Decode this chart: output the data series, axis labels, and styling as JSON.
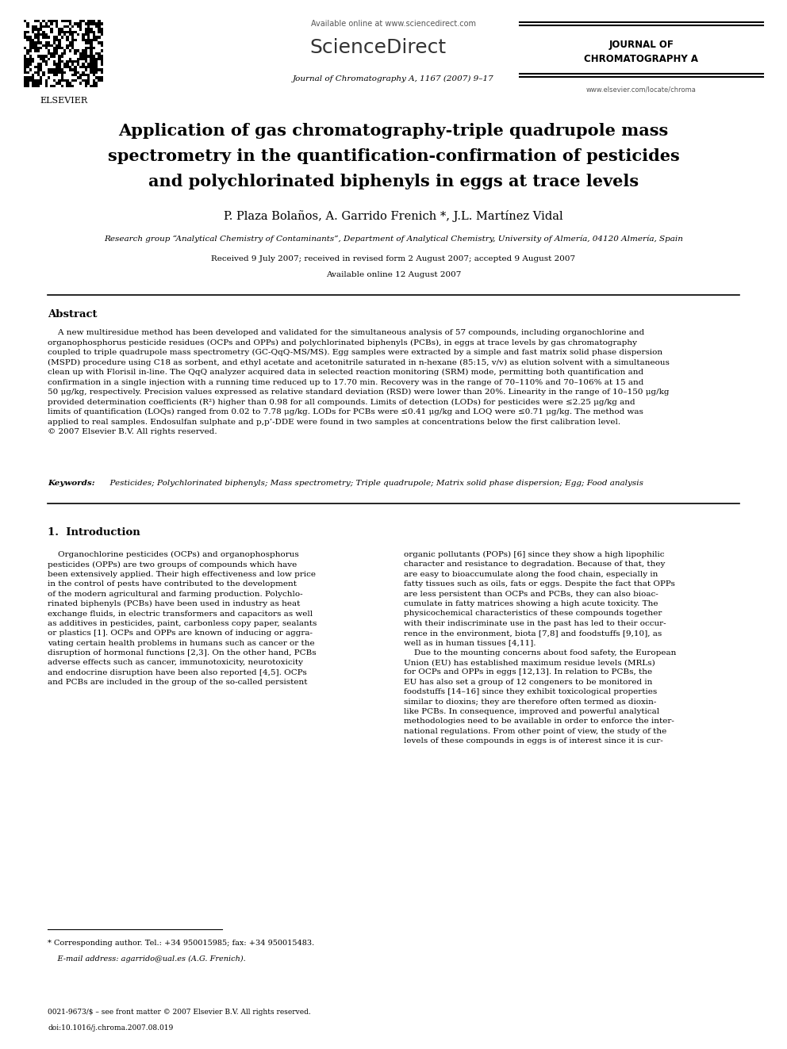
{
  "page_width": 9.92,
  "page_height": 13.23,
  "bg_color": "#ffffff",
  "available_online": "Available online at www.sciencedirect.com",
  "sciencedirect": "ScienceDirect",
  "journal_name": "JOURNAL OF\nCHROMATOGRAPHY A",
  "journal_ref": "Journal of Chromatography A, 1167 (2007) 9–17",
  "elsevier_text": "ELSEVIER",
  "url": "www.elsevier.com/locate/chroma",
  "title_line1": "Application of gas chromatography-triple quadrupole mass",
  "title_line2": "spectrometry in the quantification-confirmation of pesticides",
  "title_line3": "and polychlorinated biphenyls in eggs at trace levels",
  "authors": "P. Plaza Bolaños, A. Garrido Frenich *, J.L. Martínez Vidal",
  "affiliation": "Research group “Analytical Chemistry of Contaminants”, Department of Analytical Chemistry, University of Almería, 04120 Almería, Spain",
  "received": "Received 9 July 2007; received in revised form 2 August 2007; accepted 9 August 2007",
  "available_date": "Available online 12 August 2007",
  "abstract_title": "Abstract",
  "abstract_text": "    A new multiresidue method has been developed and validated for the simultaneous analysis of 57 compounds, including organochlorine and\norganophosphorus pesticide residues (OCPs and OPPs) and polychlorinated biphenyls (PCBs), in eggs at trace levels by gas chromatography\ncoupled to triple quadrupole mass spectrometry (GC-QqQ-MS/MS). Egg samples were extracted by a simple and fast matrix solid phase dispersion\n(MSPD) procedure using C18 as sorbent, and ethyl acetate and acetonitrile saturated in n-hexane (85:15, v/v) as elution solvent with a simultaneous\nclean up with Florisil in-line. The QqQ analyzer acquired data in selected reaction monitoring (SRM) mode, permitting both quantification and\nconfirmation in a single injection with a running time reduced up to 17.70 min. Recovery was in the range of 70–110% and 70–106% at 15 and\n50 μg/kg, respectively. Precision values expressed as relative standard deviation (RSD) were lower than 20%. Linearity in the range of 10–150 μg/kg\nprovided determination coefficients (R²) higher than 0.98 for all compounds. Limits of detection (LODs) for pesticides were ≤2.25 μg/kg and\nlimits of quantification (LOQs) ranged from 0.02 to 7.78 μg/kg. LODs for PCBs were ≤0.41 μg/kg and LOQ were ≤0.71 μg/kg. The method was\napplied to real samples. Endosulfan sulphate and p,p’-DDE were found in two samples at concentrations below the first calibration level.\n© 2007 Elsevier B.V. All rights reserved.",
  "keywords_label": "Keywords:",
  "keywords_text": "  Pesticides; Polychlorinated biphenyls; Mass spectrometry; Triple quadrupole; Matrix solid phase dispersion; Egg; Food analysis",
  "section1_title": "1.  Introduction",
  "intro_left": "    Organochlorine pesticides (OCPs) and organophosphorus\npesticides (OPPs) are two groups of compounds which have\nbeen extensively applied. Their high effectiveness and low price\nin the control of pests have contributed to the development\nof the modern agricultural and farming production. Polychlo-\nrinated biphenyls (PCBs) have been used in industry as heat\nexchange fluids, in electric transformers and capacitors as well\nas additives in pesticides, paint, carbonless copy paper, sealants\nor plastics [1]. OCPs and OPPs are known of inducing or aggra-\nvating certain health problems in humans such as cancer or the\ndisruption of hormonal functions [2,3]. On the other hand, PCBs\nadverse effects such as cancer, immunotoxicity, neurotoxicity\nand endocrine disruption have been also reported [4,5]. OCPs\nand PCBs are included in the group of the so-called persistent",
  "intro_right": "organic pollutants (POPs) [6] since they show a high lipophilic\ncharacter and resistance to degradation. Because of that, they\nare easy to bioaccumulate along the food chain, especially in\nfatty tissues such as oils, fats or eggs. Despite the fact that OPPs\nare less persistent than OCPs and PCBs, they can also bioac-\ncumulate in fatty matrices showing a high acute toxicity. The\nphysicochemical characteristics of these compounds together\nwith their indiscriminate use in the past has led to their occur-\nrence in the environment, biota [7,8] and foodstuffs [9,10], as\nwell as in human tissues [4,11].\n    Due to the mounting concerns about food safety, the European\nUnion (EU) has established maximum residue levels (MRLs)\nfor OCPs and OPPs in eggs [12,13]. In relation to PCBs, the\nEU has also set a group of 12 congeners to be monitored in\nfoodstuffs [14–16] since they exhibit toxicological properties\nsimilar to dioxins; they are therefore often termed as dioxin-\nlike PCBs. In consequence, improved and powerful analytical\nmethodologies need to be available in order to enforce the inter-\nnational regulations. From other point of view, the study of the\nlevels of these compounds in eggs is of interest since it is cur-",
  "footnote_star": "* Corresponding author. Tel.: +34 950015985; fax: +34 950015483.",
  "footnote_email": "    E-mail address: agarrido@ual.es (A.G. Frenich).",
  "bottom_line1": "0021-9673/$ – see front matter © 2007 Elsevier B.V. All rights reserved.",
  "bottom_line2": "doi:10.1016/j.chroma.2007.08.019"
}
